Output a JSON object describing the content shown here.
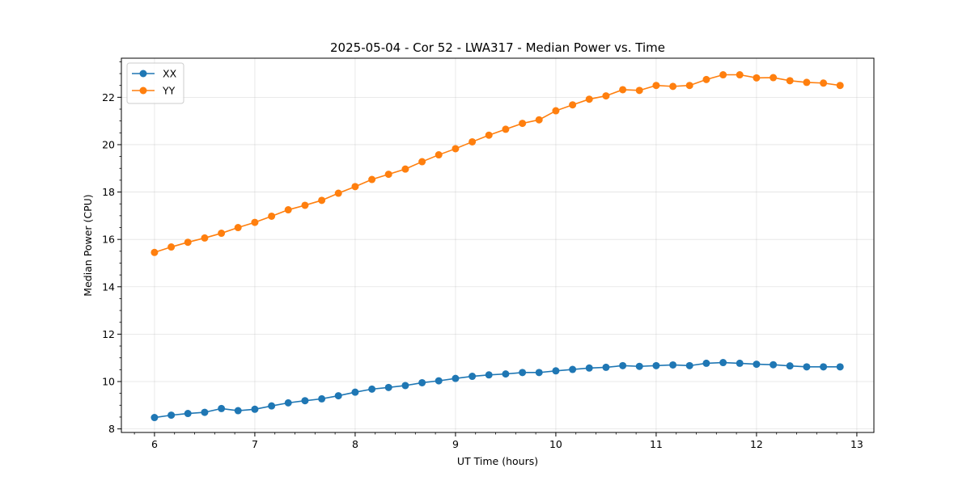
{
  "chart_data": {
    "type": "line",
    "title": "2025-05-04 - Cor 52 - LWA317 - Median Power vs. Time",
    "xlabel": "UT Time (hours)",
    "ylabel": "Median Power (CPU)",
    "xlim": [
      5.67,
      13.17
    ],
    "ylim": [
      7.85,
      23.65
    ],
    "xticks": [
      6,
      7,
      8,
      9,
      10,
      11,
      12,
      13
    ],
    "yticks": [
      8,
      10,
      12,
      14,
      16,
      18,
      20,
      22
    ],
    "grid": true,
    "legend_position": "upper-left",
    "x": [
      6.0,
      6.167,
      6.333,
      6.5,
      6.667,
      6.833,
      7.0,
      7.167,
      7.333,
      7.5,
      7.667,
      7.833,
      8.0,
      8.167,
      8.333,
      8.5,
      8.667,
      8.833,
      9.0,
      9.167,
      9.333,
      9.5,
      9.667,
      9.833,
      10.0,
      10.167,
      10.333,
      10.5,
      10.667,
      10.833,
      11.0,
      11.167,
      11.333,
      11.5,
      11.667,
      11.833,
      12.0,
      12.167,
      12.333,
      12.5,
      12.667,
      12.833
    ],
    "series": [
      {
        "name": "XX",
        "color": "#1f77b4",
        "values": [
          8.48,
          8.58,
          8.65,
          8.7,
          8.86,
          8.77,
          8.83,
          8.97,
          9.1,
          9.19,
          9.27,
          9.4,
          9.55,
          9.68,
          9.75,
          9.83,
          9.95,
          10.03,
          10.13,
          10.22,
          10.28,
          10.32,
          10.38,
          10.38,
          10.45,
          10.51,
          10.57,
          10.6,
          10.67,
          10.64,
          10.67,
          10.7,
          10.67,
          10.77,
          10.8,
          10.77,
          10.73,
          10.71,
          10.66,
          10.62,
          10.62,
          10.62
        ]
      },
      {
        "name": "YY",
        "color": "#ff7f0e",
        "values": [
          15.45,
          15.68,
          15.88,
          16.06,
          16.26,
          16.5,
          16.72,
          16.98,
          17.25,
          17.44,
          17.65,
          17.95,
          18.23,
          18.53,
          18.75,
          18.97,
          19.28,
          19.57,
          19.83,
          20.12,
          20.4,
          20.65,
          20.9,
          21.05,
          21.43,
          21.68,
          21.92,
          22.06,
          22.32,
          22.29,
          22.5,
          22.46,
          22.5,
          22.75,
          22.95,
          22.95,
          22.82,
          22.83,
          22.7,
          22.63,
          22.6,
          22.5
        ]
      }
    ]
  }
}
